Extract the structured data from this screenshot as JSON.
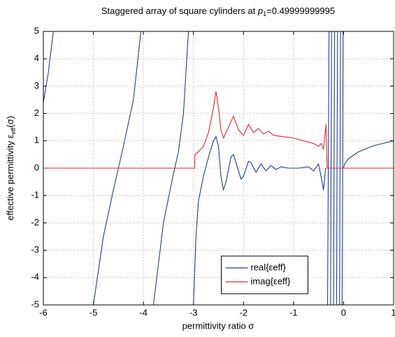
{
  "chart_data": {
    "type": "line",
    "title_parts": [
      "Staggered array of square cylinders at ",
      "p",
      "1",
      "=0.49999999995"
    ],
    "xlabel": "permittivity ratio σ",
    "ylabel_parts": [
      "effective permittivity ε",
      "eff",
      "(σ)"
    ],
    "xlim": [
      -6,
      1
    ],
    "ylim": [
      -5,
      5
    ],
    "xticks": [
      -6,
      -5,
      -4,
      -3,
      -2,
      -1,
      0,
      1
    ],
    "yticks": [
      -5,
      -4,
      -3,
      -2,
      -1,
      0,
      1,
      2,
      3,
      4,
      5
    ],
    "grid": true,
    "legend_loc": "lower center",
    "series": [
      {
        "name": "real{εeff}",
        "color": "#1f3c9c",
        "x": [
          -6,
          -5.9,
          -5.8,
          null,
          -5.0,
          -4.8,
          -4.6,
          -4.5,
          -4.4,
          -4.2,
          -4.05,
          null,
          -3.8,
          -3.6,
          -3.4,
          -3.3,
          -3.2,
          -3.1,
          null,
          -3.0,
          -2.95,
          -2.9,
          -2.8,
          -2.7,
          -2.6,
          -2.55,
          -2.5,
          -2.45,
          -2.4,
          -2.35,
          -2.25,
          -2.2,
          -2.15,
          -2.05,
          -2.0,
          -1.9,
          -1.85,
          -1.75,
          -1.65,
          -1.55,
          -1.45,
          -1.35,
          -1.25,
          -1.1,
          -0.9,
          -0.7,
          -0.6,
          -0.5,
          -0.45,
          -0.4,
          -0.36,
          null,
          -0.32,
          -0.29,
          null,
          -0.26,
          -0.24,
          null,
          -0.2,
          -0.18,
          null,
          -0.14,
          -0.12,
          null,
          -0.08,
          -0.06,
          null,
          -0.03,
          -0.01,
          null,
          0,
          0.02,
          0.1,
          0.3,
          0.6,
          1
        ],
        "values": [
          2.4,
          3.5,
          5,
          null,
          -5,
          -2.5,
          -0.8,
          0,
          0.8,
          2.5,
          5,
          null,
          -5,
          -2,
          -0.2,
          0.6,
          2,
          5,
          null,
          -5,
          -2.5,
          -1.2,
          -0.3,
          0.4,
          1.0,
          1.15,
          0.8,
          -0.3,
          -0.8,
          -0.5,
          0.4,
          0.5,
          0.2,
          -0.4,
          -0.3,
          0.25,
          0.2,
          -0.15,
          0.15,
          -0.1,
          0.1,
          -0.05,
          0.05,
          0,
          0,
          0.05,
          -0.1,
          0.15,
          -0.3,
          -0.8,
          0,
          null,
          -5,
          5,
          null,
          -5,
          5,
          null,
          -5,
          5,
          null,
          -5,
          5,
          null,
          -5,
          5,
          null,
          -5,
          5,
          null,
          0,
          0.15,
          0.35,
          0.6,
          0.82,
          1
        ]
      },
      {
        "name": "imag{εeff}",
        "color": "#e8262b",
        "x": [
          -6,
          -3,
          -2.98,
          -2.97,
          -2.9,
          -2.8,
          -2.7,
          -2.6,
          -2.55,
          -2.5,
          -2.45,
          -2.4,
          -2.3,
          -2.2,
          -2.1,
          -2.0,
          -1.9,
          -1.8,
          -1.7,
          -1.6,
          -1.5,
          -1.4,
          -1.2,
          -1.0,
          -0.8,
          -0.6,
          -0.5,
          -0.45,
          -0.4,
          -0.35,
          -0.33,
          1
        ],
        "values": [
          0,
          0,
          0,
          0.5,
          0.6,
          0.8,
          1.3,
          2.2,
          2.8,
          2.2,
          1.4,
          1.1,
          1.5,
          1.9,
          1.4,
          1.2,
          1.6,
          1.3,
          1.45,
          1.25,
          1.35,
          1.2,
          1.15,
          1.1,
          1.0,
          0.9,
          0.8,
          0.9,
          0.7,
          1.6,
          0,
          0
        ]
      }
    ]
  }
}
